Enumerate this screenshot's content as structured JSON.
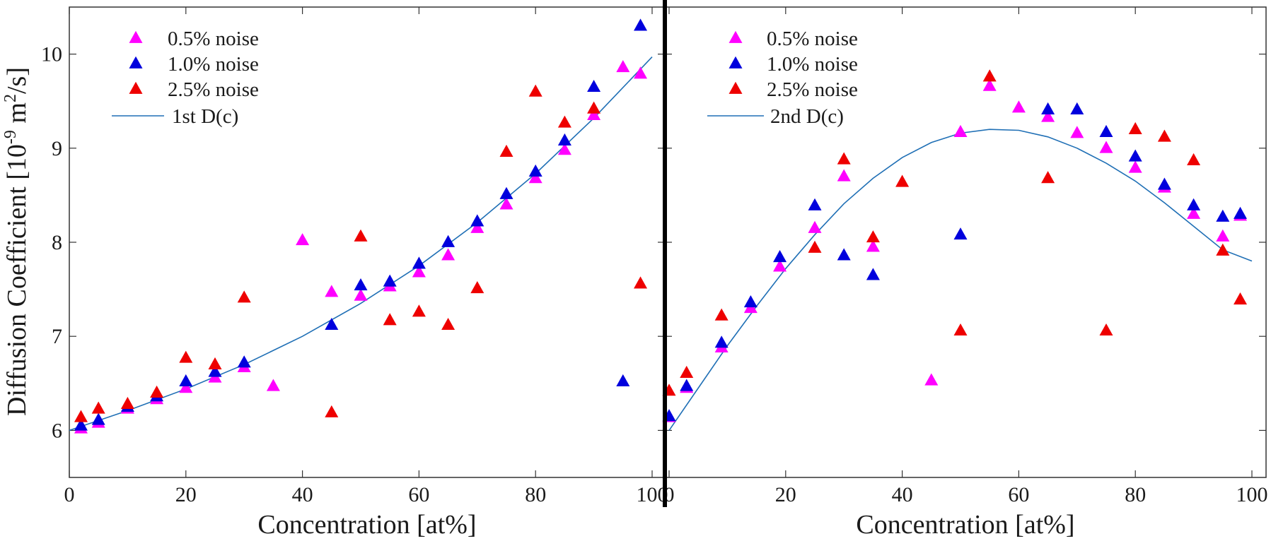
{
  "chart_data": [
    {
      "type": "scatter",
      "ylabel": "Diffusion Coefficient [10^-9 m^2/s]",
      "xlabel": "Concentration [at%]",
      "xlim": [
        0,
        100
      ],
      "ylim": [
        5.5,
        10.5
      ],
      "xticks": [
        0,
        20,
        40,
        60,
        80,
        100
      ],
      "yticks": [
        6,
        7,
        8,
        9,
        10
      ],
      "series": [
        {
          "name": "0.5% noise",
          "color": "#ff00ff",
          "marker": "triangle",
          "points": [
            [
              2,
              6.02
            ],
            [
              5,
              6.08
            ],
            [
              10,
              6.23
            ],
            [
              15,
              6.33
            ],
            [
              20,
              6.45
            ],
            [
              25,
              6.56
            ],
            [
              30,
              6.67
            ],
            [
              35,
              6.47
            ],
            [
              40,
              8.02
            ],
            [
              45,
              7.47
            ],
            [
              50,
              7.43
            ],
            [
              55,
              7.53
            ],
            [
              60,
              7.68
            ],
            [
              65,
              7.86
            ],
            [
              70,
              8.15
            ],
            [
              75,
              8.4
            ],
            [
              80,
              8.68
            ],
            [
              85,
              8.98
            ],
            [
              90,
              9.35
            ],
            [
              95,
              9.86
            ],
            [
              98,
              9.79
            ]
          ]
        },
        {
          "name": "1.0% noise",
          "color": "#0000dd",
          "marker": "triangle",
          "points": [
            [
              2,
              6.05
            ],
            [
              5,
              6.11
            ],
            [
              10,
              6.25
            ],
            [
              15,
              6.36
            ],
            [
              20,
              6.52
            ],
            [
              25,
              6.62
            ],
            [
              30,
              6.72
            ],
            [
              45,
              7.12
            ],
            [
              50,
              7.54
            ],
            [
              55,
              7.58
            ],
            [
              60,
              7.77
            ],
            [
              65,
              8.0
            ],
            [
              70,
              8.22
            ],
            [
              75,
              8.51
            ],
            [
              80,
              8.75
            ],
            [
              85,
              9.08
            ],
            [
              90,
              9.65
            ],
            [
              95,
              6.52
            ],
            [
              98,
              10.3
            ]
          ]
        },
        {
          "name": "2.5% noise",
          "color": "#ee0000",
          "marker": "triangle",
          "points": [
            [
              2,
              6.14
            ],
            [
              5,
              6.23
            ],
            [
              10,
              6.28
            ],
            [
              15,
              6.4
            ],
            [
              20,
              6.77
            ],
            [
              25,
              6.7
            ],
            [
              30,
              7.41
            ],
            [
              45,
              6.19
            ],
            [
              50,
              8.06
            ],
            [
              55,
              7.17
            ],
            [
              60,
              7.26
            ],
            [
              65,
              7.12
            ],
            [
              70,
              7.51
            ],
            [
              75,
              8.96
            ],
            [
              80,
              9.6
            ],
            [
              85,
              9.27
            ],
            [
              90,
              9.42
            ],
            [
              98,
              7.56
            ]
          ]
        }
      ],
      "fit": {
        "name": "1st D(c)",
        "color": "#1f6fb5",
        "type": "line",
        "points": [
          [
            0,
            6.0
          ],
          [
            10,
            6.21
          ],
          [
            20,
            6.44
          ],
          [
            30,
            6.7
          ],
          [
            40,
            7.0
          ],
          [
            50,
            7.35
          ],
          [
            60,
            7.75
          ],
          [
            70,
            8.21
          ],
          [
            80,
            8.73
          ],
          [
            90,
            9.32
          ],
          [
            100,
            9.97
          ]
        ]
      }
    },
    {
      "type": "scatter",
      "ylabel": "",
      "xlabel": "Concentration [at%]",
      "xlim": [
        0,
        100
      ],
      "ylim": [
        5.5,
        10.5
      ],
      "xticks": [
        0,
        20,
        40,
        60,
        80,
        100
      ],
      "yticks": [],
      "series": [
        {
          "name": "0.5% noise",
          "color": "#ff00ff",
          "marker": "triangle",
          "points": [
            [
              0,
              6.14
            ],
            [
              3,
              6.45
            ],
            [
              9,
              6.88
            ],
            [
              14,
              7.3
            ],
            [
              19,
              7.74
            ],
            [
              25,
              8.15
            ],
            [
              30,
              8.7
            ],
            [
              35,
              7.95
            ],
            [
              45,
              6.53
            ],
            [
              50,
              9.17
            ],
            [
              55,
              9.66
            ],
            [
              60,
              9.43
            ],
            [
              65,
              9.33
            ],
            [
              70,
              9.16
            ],
            [
              75,
              9.0
            ],
            [
              80,
              8.79
            ],
            [
              85,
              8.58
            ],
            [
              90,
              8.3
            ],
            [
              95,
              8.06
            ],
            [
              98,
              8.28
            ]
          ]
        },
        {
          "name": "1.0% noise",
          "color": "#0000dd",
          "marker": "triangle",
          "points": [
            [
              0,
              6.15
            ],
            [
              3,
              6.47
            ],
            [
              9,
              6.93
            ],
            [
              14,
              7.36
            ],
            [
              19,
              7.84
            ],
            [
              25,
              8.39
            ],
            [
              30,
              7.86
            ],
            [
              35,
              7.65
            ],
            [
              50,
              8.08
            ],
            [
              65,
              9.41
            ],
            [
              70,
              9.41
            ],
            [
              75,
              9.17
            ],
            [
              80,
              8.91
            ],
            [
              85,
              8.61
            ],
            [
              90,
              8.39
            ],
            [
              95,
              8.27
            ],
            [
              98,
              8.3
            ]
          ]
        },
        {
          "name": "2.5% noise",
          "color": "#ee0000",
          "marker": "triangle",
          "points": [
            [
              0,
              6.42
            ],
            [
              3,
              6.61
            ],
            [
              9,
              7.22
            ],
            [
              25,
              7.94
            ],
            [
              30,
              8.88
            ],
            [
              35,
              8.05
            ],
            [
              40,
              8.64
            ],
            [
              50,
              7.06
            ],
            [
              55,
              9.76
            ],
            [
              65,
              8.68
            ],
            [
              75,
              7.06
            ],
            [
              80,
              9.2
            ],
            [
              85,
              9.12
            ],
            [
              90,
              8.87
            ],
            [
              95,
              7.91
            ],
            [
              98,
              7.39
            ]
          ]
        }
      ],
      "fit": {
        "name": "2nd D(c)",
        "color": "#1f6fb5",
        "type": "line",
        "points": [
          [
            0,
            6.0
          ],
          [
            5,
            6.45
          ],
          [
            10,
            6.9
          ],
          [
            15,
            7.32
          ],
          [
            20,
            7.72
          ],
          [
            25,
            8.08
          ],
          [
            30,
            8.41
          ],
          [
            35,
            8.68
          ],
          [
            40,
            8.9
          ],
          [
            45,
            9.06
          ],
          [
            50,
            9.16
          ],
          [
            55,
            9.2
          ],
          [
            60,
            9.19
          ],
          [
            65,
            9.12
          ],
          [
            70,
            9.0
          ],
          [
            75,
            8.84
          ],
          [
            80,
            8.65
          ],
          [
            85,
            8.42
          ],
          [
            90,
            8.17
          ],
          [
            95,
            7.92
          ],
          [
            100,
            7.8
          ]
        ]
      }
    }
  ],
  "ylabel_parts": {
    "pre": "Diffusion Coefficient [10",
    "exp1": "-9",
    "mid": " m",
    "exp2": "2",
    "post": "/s]"
  }
}
